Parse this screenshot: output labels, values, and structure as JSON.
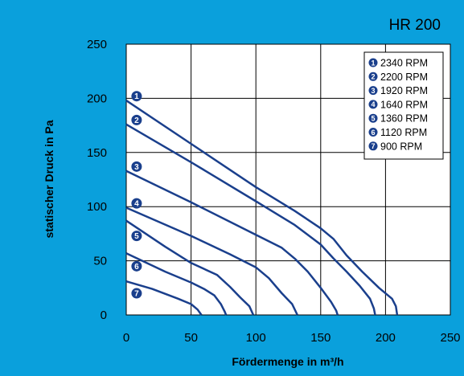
{
  "chart_data": {
    "type": "line",
    "title": "HR 200",
    "xlabel": "Fördermenge in m³/h",
    "ylabel": "statischer Druck in Pa",
    "xlim": [
      0,
      250
    ],
    "ylim": [
      0,
      250
    ],
    "xticks": [
      "0",
      "50",
      "100",
      "150",
      "200",
      "250"
    ],
    "yticks": [
      "0",
      "50",
      "100",
      "150",
      "200",
      "250"
    ],
    "grid": true,
    "legend_position": "top-right",
    "colors": {
      "background": "#0aa0dc",
      "plot": "#ffffff",
      "line": "#1a3f8c",
      "grid": "#000000"
    },
    "series": [
      {
        "marker": "1",
        "name": "2340 RPM",
        "label_at": [
          8,
          202
        ],
        "points": [
          [
            0,
            198
          ],
          [
            50,
            158
          ],
          [
            100,
            118
          ],
          [
            130,
            96
          ],
          [
            150,
            80
          ],
          [
            160,
            70
          ],
          [
            170,
            55
          ],
          [
            182,
            40
          ],
          [
            195,
            25
          ],
          [
            205,
            15
          ],
          [
            208,
            8
          ],
          [
            209,
            0
          ]
        ]
      },
      {
        "marker": "2",
        "name": "2200 RPM",
        "label_at": [
          8,
          180
        ],
        "points": [
          [
            0,
            176
          ],
          [
            50,
            141
          ],
          [
            100,
            105
          ],
          [
            130,
            83
          ],
          [
            150,
            65
          ],
          [
            160,
            52
          ],
          [
            170,
            40
          ],
          [
            180,
            27
          ],
          [
            188,
            15
          ],
          [
            191,
            6
          ],
          [
            192,
            0
          ]
        ]
      },
      {
        "marker": "3",
        "name": "1920 RPM",
        "label_at": [
          8,
          137
        ],
        "points": [
          [
            0,
            133
          ],
          [
            50,
            104
          ],
          [
            100,
            74
          ],
          [
            120,
            62
          ],
          [
            130,
            52
          ],
          [
            140,
            40
          ],
          [
            150,
            25
          ],
          [
            158,
            12
          ],
          [
            162,
            4
          ],
          [
            163,
            0
          ]
        ]
      },
      {
        "marker": "4",
        "name": "1640 RPM",
        "label_at": [
          8,
          103
        ],
        "points": [
          [
            0,
            99
          ],
          [
            50,
            73
          ],
          [
            80,
            56
          ],
          [
            100,
            44
          ],
          [
            110,
            34
          ],
          [
            120,
            20
          ],
          [
            128,
            10
          ],
          [
            132,
            0
          ]
        ]
      },
      {
        "marker": "5",
        "name": "1360 RPM",
        "label_at": [
          8,
          73
        ],
        "points": [
          [
            0,
            87
          ],
          [
            30,
            63
          ],
          [
            50,
            48
          ],
          [
            70,
            37
          ],
          [
            80,
            26
          ],
          [
            88,
            16
          ],
          [
            95,
            8
          ],
          [
            98,
            0
          ]
        ]
      },
      {
        "marker": "6",
        "name": "1120 RPM",
        "label_at": [
          8,
          45
        ],
        "points": [
          [
            0,
            57
          ],
          [
            30,
            40
          ],
          [
            50,
            30
          ],
          [
            60,
            24
          ],
          [
            68,
            18
          ],
          [
            73,
            10
          ],
          [
            76,
            3
          ],
          [
            77,
            0
          ]
        ]
      },
      {
        "marker": "7",
        "name": "900 RPM",
        "label_at": [
          8,
          20
        ],
        "points": [
          [
            0,
            31
          ],
          [
            20,
            24
          ],
          [
            40,
            15
          ],
          [
            50,
            10
          ],
          [
            55,
            5
          ],
          [
            58,
            0
          ]
        ]
      }
    ]
  }
}
